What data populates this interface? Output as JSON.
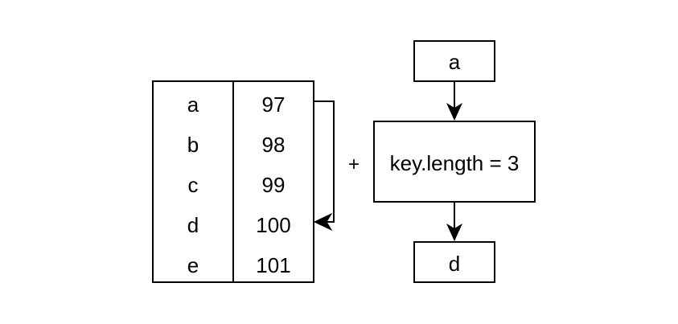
{
  "table": {
    "rows": [
      {
        "letter": "a",
        "code": "97"
      },
      {
        "letter": "b",
        "code": "98"
      },
      {
        "letter": "c",
        "code": "99"
      },
      {
        "letter": "d",
        "code": "100"
      },
      {
        "letter": "e",
        "code": "101"
      }
    ]
  },
  "operator": "+",
  "flow": {
    "input": "a",
    "operation": "key.length = 3",
    "output": "d"
  },
  "colors": {
    "stroke": "#000000",
    "background": "#ffffff",
    "text": "#000000"
  }
}
